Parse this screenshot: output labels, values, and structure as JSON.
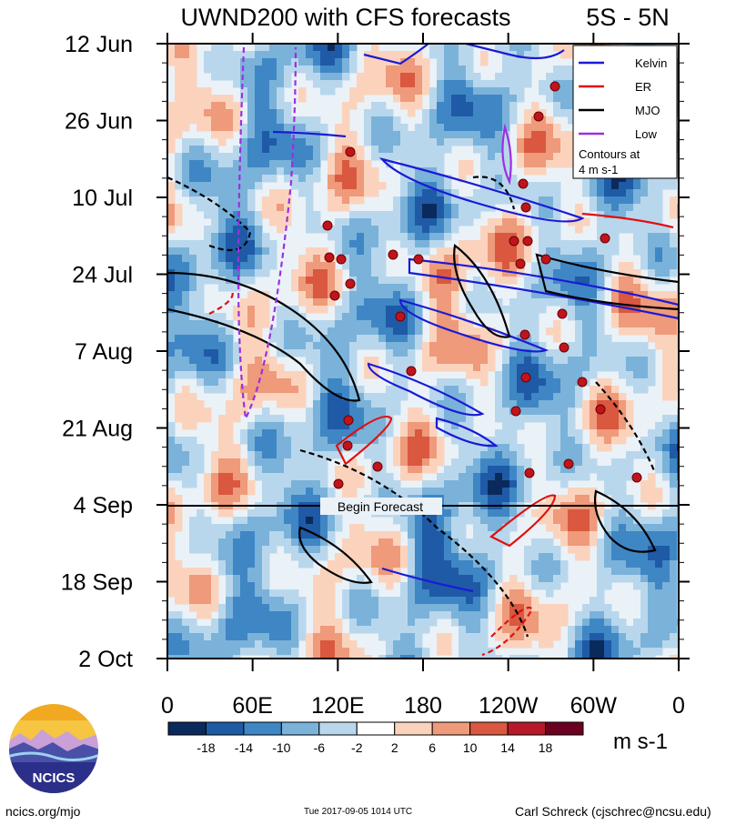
{
  "chart_data": {
    "type": "heatmap",
    "title": "UWND200 with CFS forecasts",
    "region": "5S - 5N",
    "y_ticks": [
      "12 Jun",
      "26 Jun",
      "10 Jul",
      "24 Jul",
      "7 Aug",
      "21 Aug",
      "4 Sep",
      "18 Sep",
      "2 Oct"
    ],
    "x_ticks": [
      "0",
      "60E",
      "120E",
      "180",
      "120W",
      "60W",
      "0"
    ],
    "x_range_deg": [
      0,
      360
    ],
    "forecast_label": "Begin Forecast",
    "forecast_date": "4 Sep",
    "legend": [
      {
        "name": "Kelvin",
        "color": "#1a1ad6"
      },
      {
        "name": "ER",
        "color": "#e01010"
      },
      {
        "name": "MJO",
        "color": "#000000"
      },
      {
        "name": "Low",
        "color": "#9b30e0"
      }
    ],
    "contour_note_1": "Contours at",
    "contour_note_2": "4 m s-1",
    "colorbar": {
      "unit": "m s-1",
      "tick_labels": [
        "-18",
        "-14",
        "-10",
        "-6",
        "-2",
        "2",
        "6",
        "10",
        "14",
        "18"
      ],
      "colors": [
        "#0b2a5c",
        "#1f5aa6",
        "#3f86c4",
        "#7ab2da",
        "#b9d7ec",
        "#ffffff",
        "#fbd3bd",
        "#ee9a7b",
        "#d9583f",
        "#b7182a",
        "#6b0020"
      ]
    }
  },
  "logo": {
    "text": "NCICS"
  },
  "footer": {
    "site": "ncics.org/mjo",
    "timestamp": "Tue 2017-09-05 1014 UTC",
    "author": "Carl Schreck (cjschrec@ncsu.edu)"
  }
}
